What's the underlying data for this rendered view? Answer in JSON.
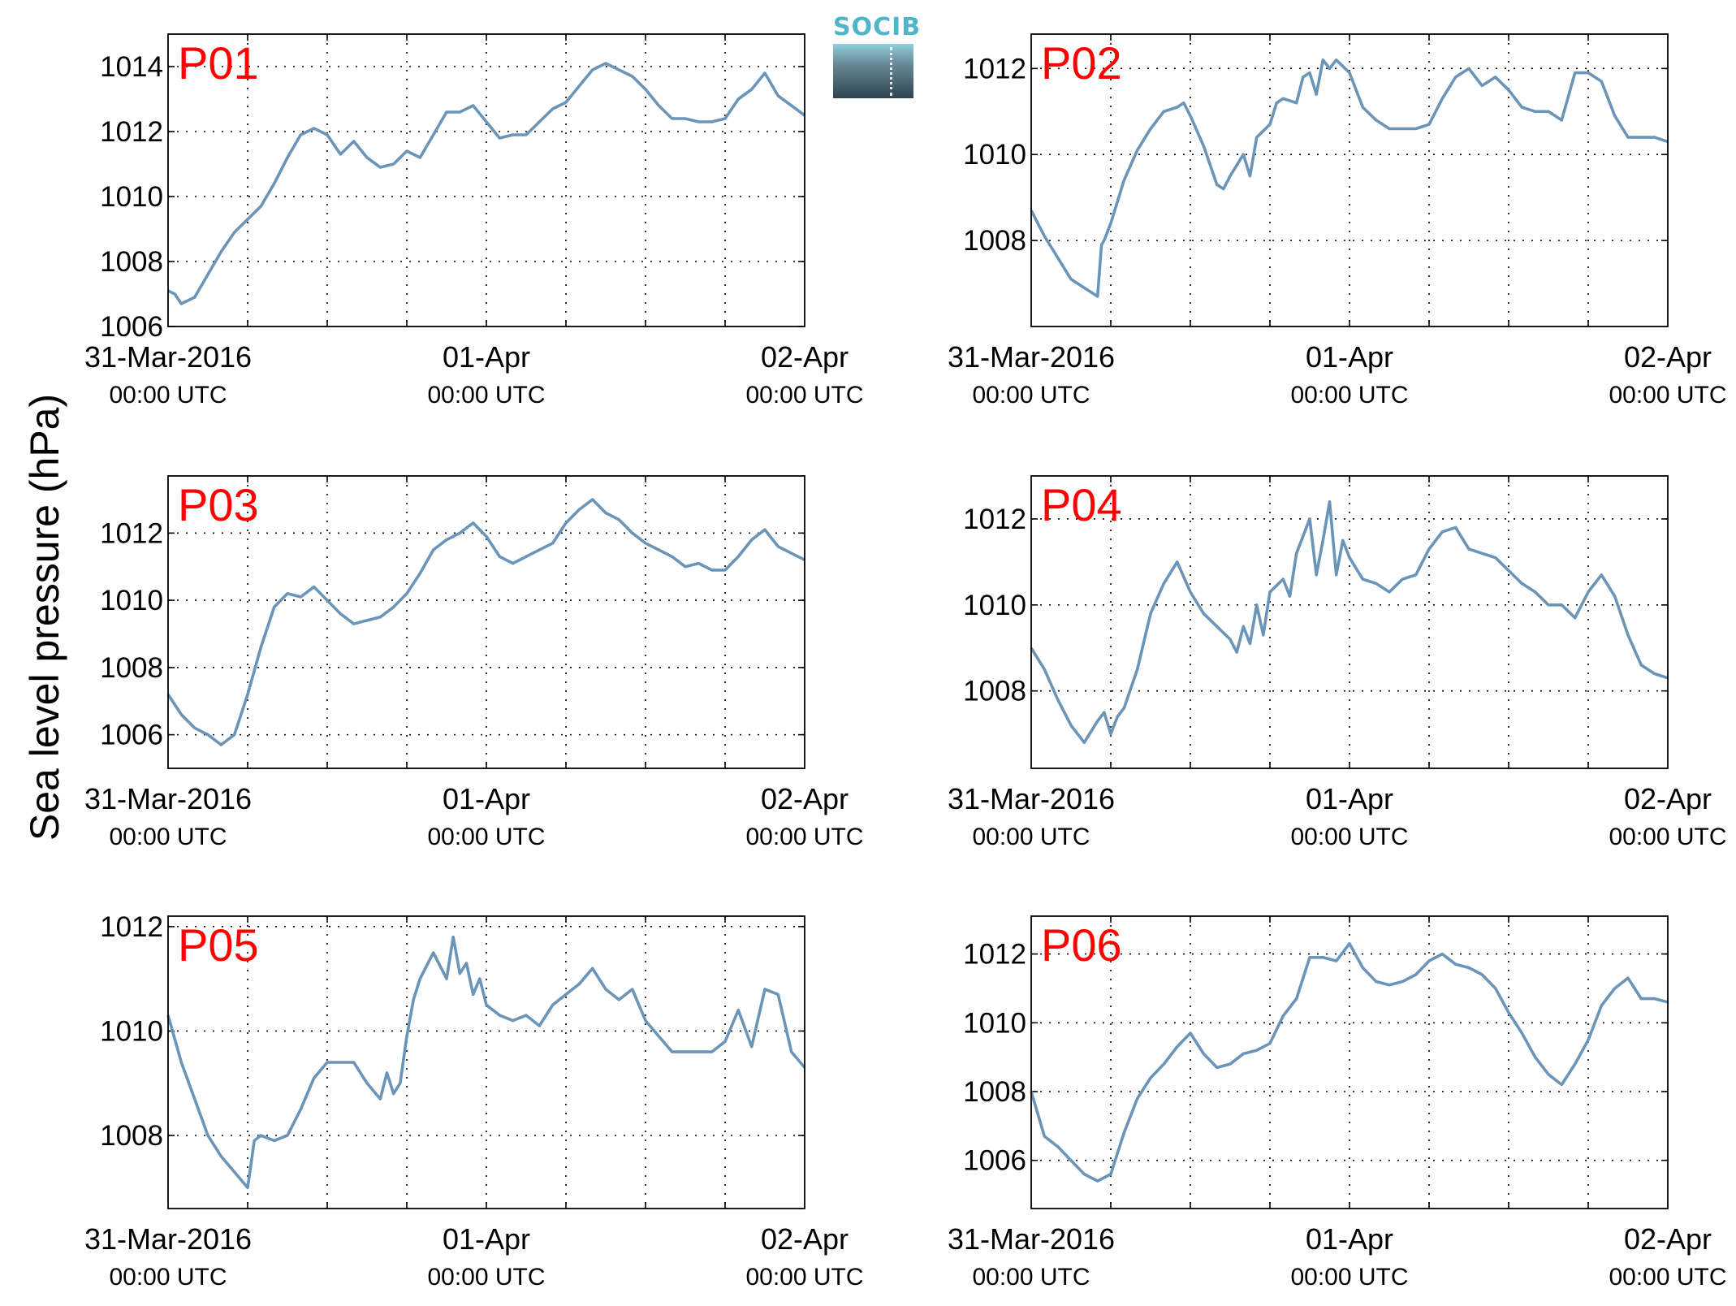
{
  "figure": {
    "ylabel": "Sea level pressure (hPa)",
    "logo_text": "SOCIB",
    "colors": {
      "line": "#6a94b8",
      "panel_label": "#ff0000",
      "axis": "#000000",
      "grid": "#000000"
    }
  },
  "chart_data": [
    {
      "type": "line",
      "title": "P01",
      "xlabel_ticks": [
        {
          "label": "31-Mar-2016",
          "sub": "00:00 UTC"
        },
        {
          "label": "01-Apr",
          "sub": "00:00 UTC"
        },
        {
          "label": "02-Apr",
          "sub": "00:00 UTC"
        }
      ],
      "x_hours_range": [
        0,
        48
      ],
      "ylim": [
        1006,
        1015
      ],
      "yticks": [
        1006,
        1008,
        1010,
        1012,
        1014
      ],
      "grid": true,
      "series": [
        {
          "x": [
            0,
            0.5,
            1,
            2,
            3,
            4,
            5,
            6,
            7,
            8,
            9,
            10,
            11,
            12,
            13,
            14,
            15,
            16,
            17,
            18,
            19,
            20,
            21,
            22,
            23,
            24,
            25,
            26,
            27,
            28,
            29,
            30,
            31,
            32,
            33,
            34,
            35,
            36,
            37,
            38,
            39,
            40,
            41,
            42,
            43,
            44,
            45,
            46,
            47,
            48
          ],
          "y": [
            1007.1,
            1007,
            1006.7,
            1006.9,
            1007.6,
            1008.3,
            1008.9,
            1009.3,
            1009.7,
            1010.4,
            1011.2,
            1011.9,
            1012.1,
            1011.9,
            1011.3,
            1011.7,
            1011.2,
            1010.9,
            1011.0,
            1011.4,
            1011.2,
            1011.9,
            1012.6,
            1012.6,
            1012.8,
            1012.3,
            1011.8,
            1011.9,
            1011.9,
            1012.3,
            1012.7,
            1012.9,
            1013.4,
            1013.9,
            1014.1,
            1013.9,
            1013.7,
            1013.3,
            1012.8,
            1012.4,
            1012.4,
            1012.3,
            1012.3,
            1012.4,
            1013.0,
            1013.3,
            1013.8,
            1013.1,
            1012.8,
            1012.5
          ]
        }
      ]
    },
    {
      "type": "line",
      "title": "P02",
      "xlabel_ticks": [
        {
          "label": "31-Mar-2016",
          "sub": "00:00 UTC"
        },
        {
          "label": "01-Apr",
          "sub": "00:00 UTC"
        },
        {
          "label": "02-Apr",
          "sub": "00:00 UTC"
        }
      ],
      "x_hours_range": [
        0,
        48
      ],
      "ylim": [
        1006,
        1012.8
      ],
      "yticks": [
        1008,
        1010,
        1012
      ],
      "grid": true,
      "series": [
        {
          "x": [
            0,
            1,
            2,
            3,
            4,
            5,
            5.3,
            5.5,
            6,
            7,
            8,
            9,
            10,
            11,
            11.5,
            12,
            13,
            14,
            14.5,
            15,
            16,
            16.5,
            17,
            18,
            18.5,
            19,
            20,
            20.5,
            21,
            21.5,
            22,
            22.5,
            23,
            24,
            25,
            26,
            27,
            28,
            29,
            30,
            31,
            32,
            33,
            34,
            35,
            36,
            37,
            38,
            39,
            40,
            41,
            42,
            43,
            44,
            45,
            46,
            47,
            48
          ],
          "y": [
            1008.7,
            1008.1,
            1007.6,
            1007.1,
            1006.9,
            1006.7,
            1007.9,
            1008.0,
            1008.4,
            1009.4,
            1010.1,
            1010.6,
            1011.0,
            1011.1,
            1011.2,
            1010.9,
            1010.2,
            1009.3,
            1009.2,
            1009.5,
            1010.0,
            1009.5,
            1010.4,
            1010.7,
            1011.2,
            1011.3,
            1011.2,
            1011.8,
            1011.9,
            1011.4,
            1012.2,
            1012.0,
            1012.2,
            1011.9,
            1011.1,
            1010.8,
            1010.6,
            1010.6,
            1010.6,
            1010.7,
            1011.3,
            1011.8,
            1012.0,
            1011.6,
            1011.8,
            1011.5,
            1011.1,
            1011.0,
            1011.0,
            1010.8,
            1011.9,
            1011.9,
            1011.7,
            1010.9,
            1010.4,
            1010.4,
            1010.4,
            1010.3
          ]
        }
      ]
    },
    {
      "type": "line",
      "title": "P03",
      "xlabel_ticks": [
        {
          "label": "31-Mar-2016",
          "sub": "00:00 UTC"
        },
        {
          "label": "01-Apr",
          "sub": "00:00 UTC"
        },
        {
          "label": "02-Apr",
          "sub": "00:00 UTC"
        }
      ],
      "x_hours_range": [
        0,
        48
      ],
      "ylim": [
        1005,
        1013.7
      ],
      "yticks": [
        1006,
        1008,
        1010,
        1012
      ],
      "grid": true,
      "series": [
        {
          "x": [
            0,
            1,
            2,
            3,
            4,
            5,
            6,
            7,
            8,
            9,
            10,
            11,
            12,
            13,
            14,
            15,
            16,
            17,
            18,
            19,
            20,
            21,
            22,
            23,
            24,
            25,
            26,
            27,
            28,
            29,
            30,
            31,
            32,
            33,
            34,
            35,
            36,
            37,
            38,
            39,
            40,
            41,
            42,
            43,
            44,
            45,
            46,
            47,
            48
          ],
          "y": [
            1007.2,
            1006.6,
            1006.2,
            1006.0,
            1005.7,
            1006.0,
            1007.2,
            1008.6,
            1009.8,
            1010.2,
            1010.1,
            1010.4,
            1010.0,
            1009.6,
            1009.3,
            1009.4,
            1009.5,
            1009.8,
            1010.2,
            1010.8,
            1011.5,
            1011.8,
            1012.0,
            1012.3,
            1011.9,
            1011.3,
            1011.1,
            1011.3,
            1011.5,
            1011.7,
            1012.3,
            1012.7,
            1013.0,
            1012.6,
            1012.4,
            1012.0,
            1011.7,
            1011.5,
            1011.3,
            1011.0,
            1011.1,
            1010.9,
            1010.9,
            1011.3,
            1011.8,
            1012.1,
            1011.6,
            1011.4,
            1011.2
          ]
        }
      ]
    },
    {
      "type": "line",
      "title": "P04",
      "xlabel_ticks": [
        {
          "label": "31-Mar-2016",
          "sub": "00:00 UTC"
        },
        {
          "label": "01-Apr",
          "sub": "00:00 UTC"
        },
        {
          "label": "02-Apr",
          "sub": "00:00 UTC"
        }
      ],
      "x_hours_range": [
        0,
        48
      ],
      "ylim": [
        1006.2,
        1013
      ],
      "yticks": [
        1008,
        1010,
        1012
      ],
      "grid": true,
      "series": [
        {
          "x": [
            0,
            1,
            2,
            3,
            4,
            5,
            5.5,
            6,
            6.5,
            7,
            8,
            9,
            10,
            11,
            12,
            13,
            14,
            15,
            15.5,
            16,
            16.5,
            17,
            17.5,
            18,
            19,
            19.5,
            20,
            21,
            21.5,
            22,
            22.5,
            23,
            23.5,
            24,
            25,
            26,
            27,
            28,
            29,
            30,
            31,
            32,
            33,
            34,
            35,
            36,
            37,
            38,
            39,
            40,
            41,
            42,
            43,
            44,
            45,
            46,
            47,
            48
          ],
          "y": [
            1009.0,
            1008.5,
            1007.8,
            1007.2,
            1006.8,
            1007.3,
            1007.5,
            1007.0,
            1007.4,
            1007.6,
            1008.5,
            1009.8,
            1010.5,
            1011.0,
            1010.3,
            1009.8,
            1009.5,
            1009.2,
            1008.9,
            1009.5,
            1009.1,
            1010.0,
            1009.3,
            1010.3,
            1010.6,
            1010.2,
            1011.2,
            1012.0,
            1010.7,
            1011.5,
            1012.4,
            1010.7,
            1011.5,
            1011.1,
            1010.6,
            1010.5,
            1010.3,
            1010.6,
            1010.7,
            1011.3,
            1011.7,
            1011.8,
            1011.3,
            1011.2,
            1011.1,
            1010.8,
            1010.5,
            1010.3,
            1010.0,
            1010.0,
            1009.7,
            1010.3,
            1010.7,
            1010.2,
            1009.3,
            1008.6,
            1008.4,
            1008.3
          ]
        }
      ]
    },
    {
      "type": "line",
      "title": "P05",
      "xlabel_ticks": [
        {
          "label": "31-Mar-2016",
          "sub": "00:00 UTC"
        },
        {
          "label": "01-Apr",
          "sub": "00:00 UTC"
        },
        {
          "label": "02-Apr",
          "sub": "00:00 UTC"
        }
      ],
      "x_hours_range": [
        0,
        48
      ],
      "ylim": [
        1006.6,
        1012.2
      ],
      "yticks": [
        1008,
        1010,
        1012
      ],
      "grid": true,
      "series": [
        {
          "x": [
            0,
            1,
            2,
            3,
            4,
            5,
            6,
            6.5,
            7,
            8,
            9,
            10,
            11,
            12,
            13,
            14,
            15,
            16,
            16.5,
            17,
            17.5,
            18,
            18.5,
            19,
            20,
            21,
            21.5,
            22,
            22.5,
            23,
            23.5,
            24,
            25,
            26,
            27,
            28,
            29,
            30,
            31,
            32,
            33,
            34,
            35,
            36,
            37,
            38,
            39,
            40,
            41,
            42,
            43,
            44,
            45,
            46,
            47,
            48
          ],
          "y": [
            1010.3,
            1009.4,
            1008.7,
            1008.0,
            1007.6,
            1007.3,
            1007.0,
            1007.9,
            1008.0,
            1007.9,
            1008.0,
            1008.5,
            1009.1,
            1009.4,
            1009.4,
            1009.4,
            1009.0,
            1008.7,
            1009.2,
            1008.8,
            1009.0,
            1009.9,
            1010.6,
            1011.0,
            1011.5,
            1011.0,
            1011.8,
            1011.1,
            1011.3,
            1010.7,
            1011.0,
            1010.5,
            1010.3,
            1010.2,
            1010.3,
            1010.1,
            1010.5,
            1010.7,
            1010.9,
            1011.2,
            1010.8,
            1010.6,
            1010.8,
            1010.2,
            1009.9,
            1009.6,
            1009.6,
            1009.6,
            1009.6,
            1009.8,
            1010.4,
            1009.7,
            1010.8,
            1010.7,
            1009.6,
            1009.3
          ]
        }
      ]
    },
    {
      "type": "line",
      "title": "P06",
      "xlabel_ticks": [
        {
          "label": "31-Mar-2016",
          "sub": "00:00 UTC"
        },
        {
          "label": "01-Apr",
          "sub": "00:00 UTC"
        },
        {
          "label": "02-Apr",
          "sub": "00:00 UTC"
        }
      ],
      "x_hours_range": [
        0,
        48
      ],
      "ylim": [
        1004.6,
        1013.1
      ],
      "yticks": [
        1006,
        1008,
        1010,
        1012
      ],
      "grid": true,
      "series": [
        {
          "x": [
            0,
            1,
            2,
            3,
            4,
            5,
            6,
            7,
            8,
            9,
            10,
            11,
            12,
            13,
            14,
            15,
            16,
            17,
            18,
            19,
            20,
            21,
            22,
            23,
            24,
            25,
            26,
            27,
            28,
            29,
            30,
            31,
            32,
            33,
            34,
            35,
            36,
            37,
            38,
            39,
            40,
            41,
            42,
            43,
            44,
            45,
            46,
            47,
            48
          ],
          "y": [
            1008.0,
            1006.7,
            1006.4,
            1006.0,
            1005.6,
            1005.4,
            1005.6,
            1006.8,
            1007.8,
            1008.4,
            1008.8,
            1009.3,
            1009.7,
            1009.1,
            1008.7,
            1008.8,
            1009.1,
            1009.2,
            1009.4,
            1010.2,
            1010.7,
            1011.9,
            1011.9,
            1011.8,
            1012.3,
            1011.6,
            1011.2,
            1011.1,
            1011.2,
            1011.4,
            1011.8,
            1012.0,
            1011.7,
            1011.6,
            1011.4,
            1011.0,
            1010.3,
            1009.7,
            1009.0,
            1008.5,
            1008.2,
            1008.8,
            1009.5,
            1010.5,
            1011.0,
            1011.3,
            1010.7,
            1010.7,
            1010.6
          ]
        }
      ]
    }
  ]
}
